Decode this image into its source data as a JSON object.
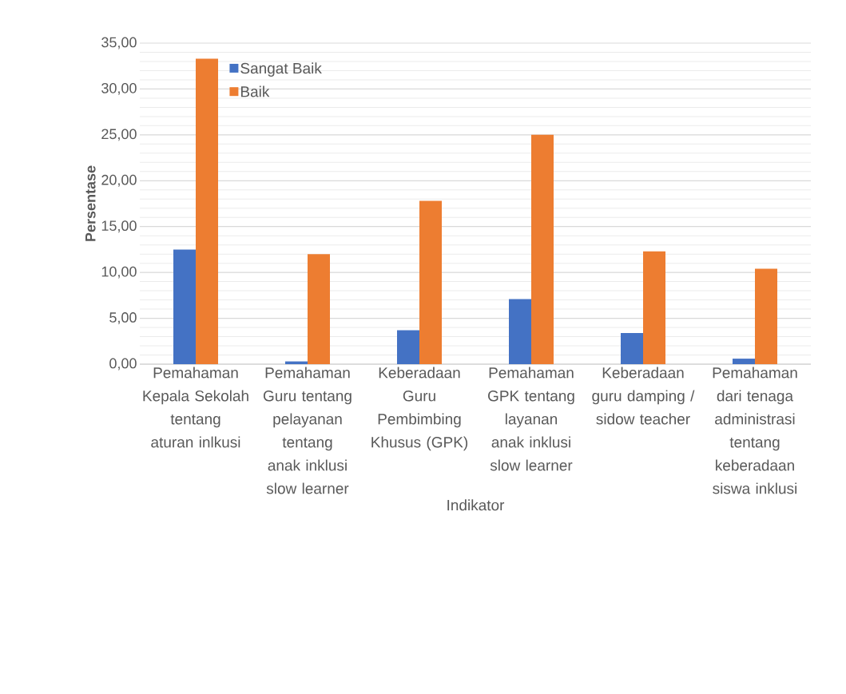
{
  "chart_data": {
    "type": "bar",
    "xlabel": "Indikator",
    "ylabel": "Persentase",
    "categories": [
      "Pemahaman Kepala Sekolah tentang aturan inlkusi",
      "Pemahaman Guru tentang pelayanan tentang anak inklusi slow learner",
      "Keberadaan Guru Pembimbing Khusus (GPK)",
      "Pemahaman GPK tentang layanan anak inklusi slow learner",
      "Keberadaan guru damping / sidow teacher",
      "Pemahaman dari tenaga administrasi tentang keberadaan siswa inklusi"
    ],
    "series": [
      {
        "name": "Sangat Baik",
        "color": "#4472c4",
        "values": [
          12.5,
          0.3,
          3.7,
          7.1,
          3.4,
          0.6
        ]
      },
      {
        "name": "Baik",
        "color": "#ed7d31",
        "values": [
          33.3,
          12.0,
          17.8,
          25.0,
          12.3,
          10.4
        ]
      }
    ],
    "ylim": [
      0,
      35
    ],
    "yticks": [
      {
        "value": 0,
        "label": "0,00"
      },
      {
        "value": 5,
        "label": "5,00"
      },
      {
        "value": 10,
        "label": "10,00"
      },
      {
        "value": 15,
        "label": "15,00"
      },
      {
        "value": 20,
        "label": "20,00"
      },
      {
        "value": 25,
        "label": "25,00"
      },
      {
        "value": 30,
        "label": "30,00"
      },
      {
        "value": 35,
        "label": "35,00"
      }
    ],
    "grid": "y",
    "legend": "top left"
  }
}
